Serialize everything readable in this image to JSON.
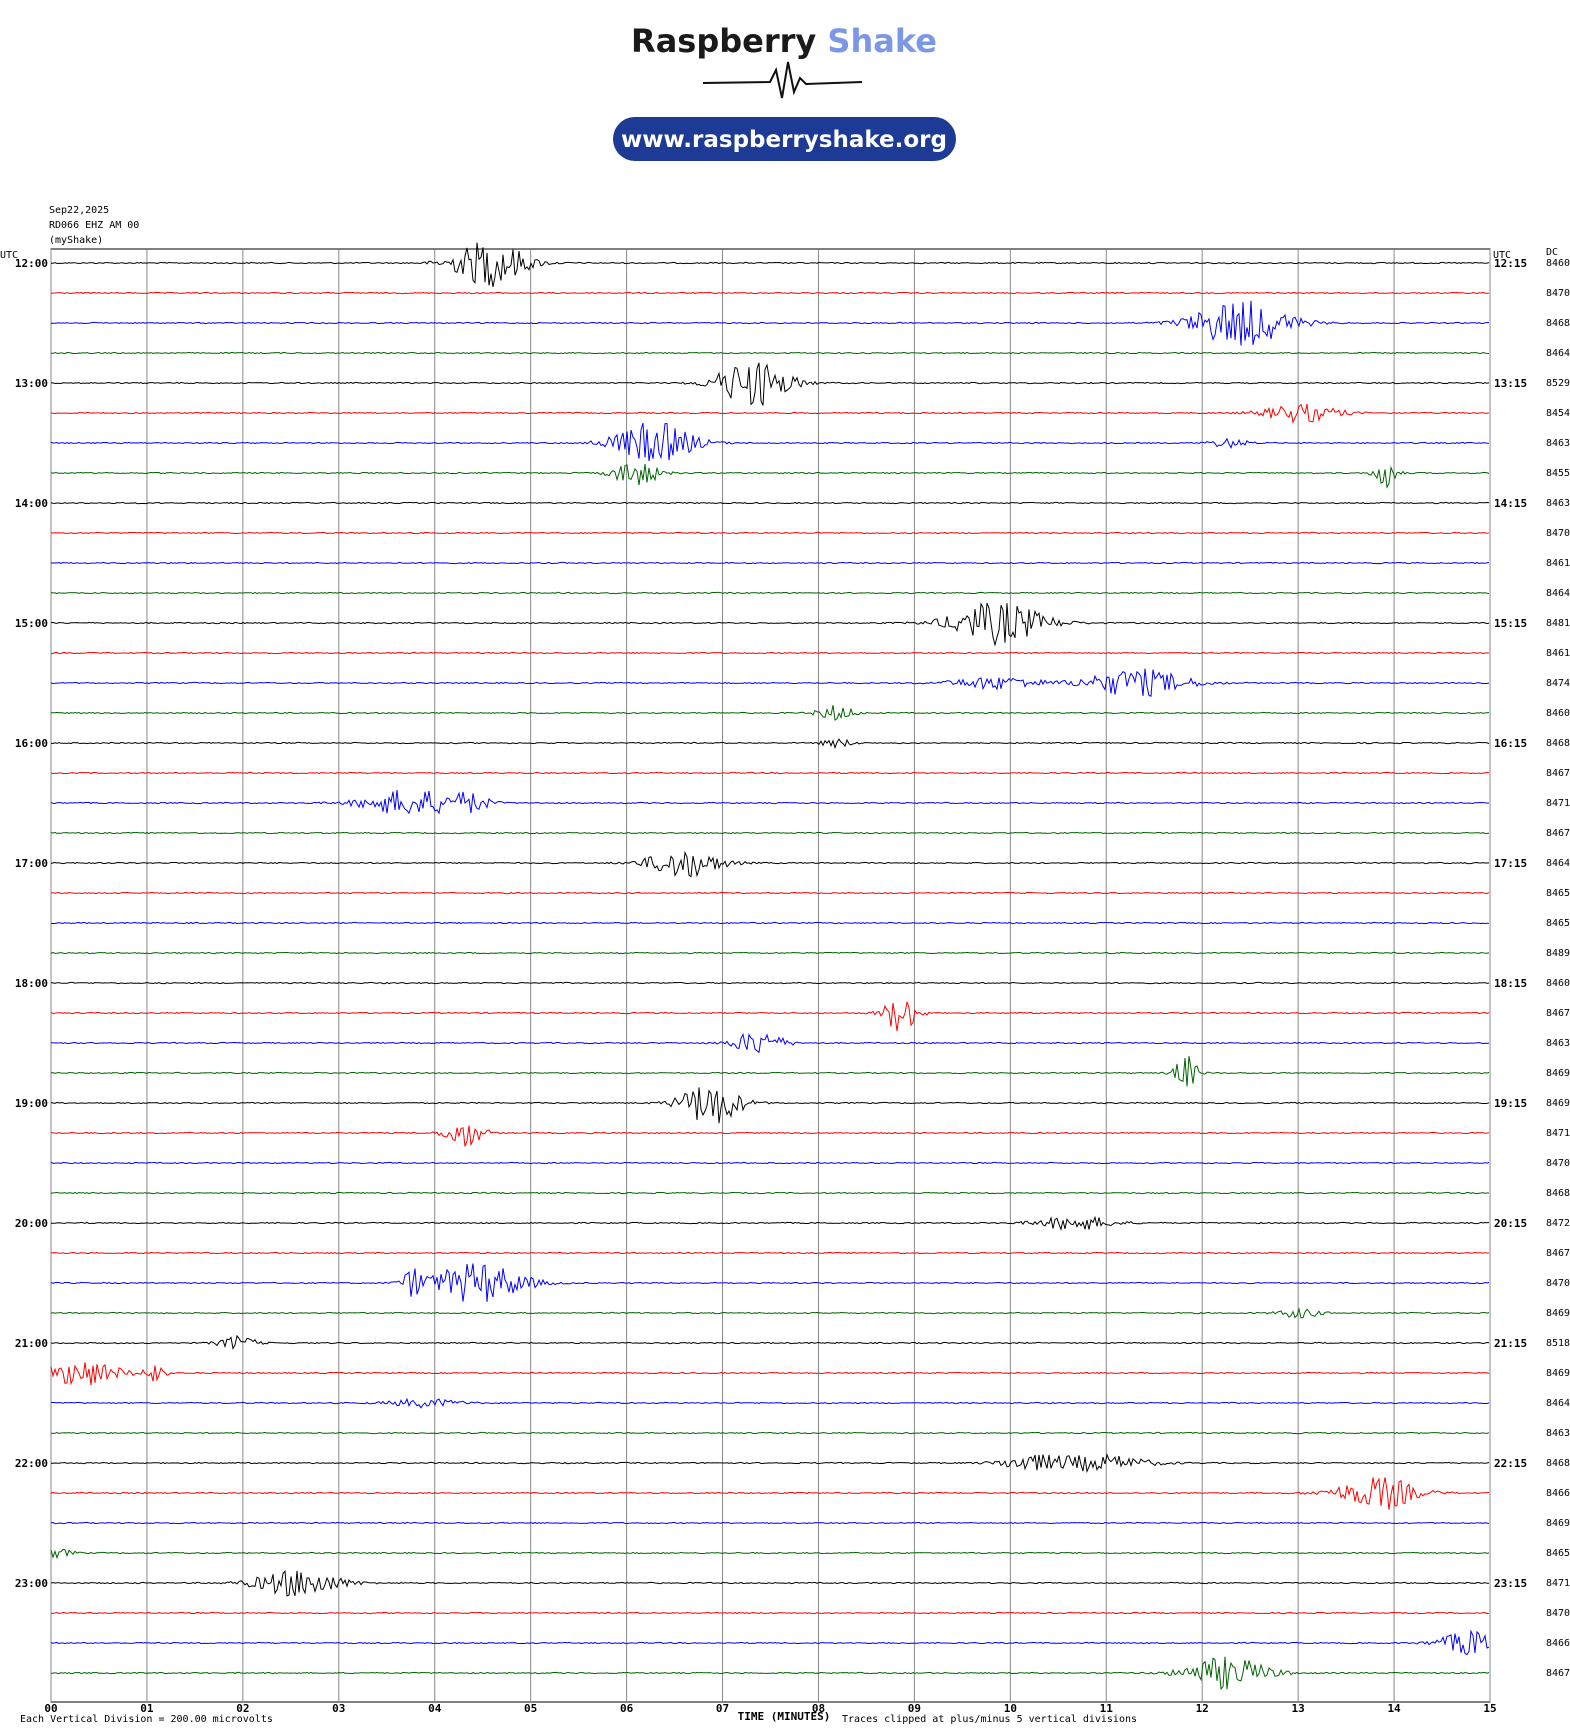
{
  "header": {
    "brand_first": "Raspberry",
    "brand_second": "Shake",
    "url": "www.raspberryshake.org"
  },
  "meta": {
    "date": "Sep22,2025",
    "station": "RD066 EHZ AM 00",
    "network": "(myShake)"
  },
  "left_title": "UTC",
  "right_title": "UTC",
  "dc_title": "DC",
  "left_labels": [
    "12:00",
    "13:00",
    "14:00",
    "15:00",
    "16:00",
    "17:00",
    "18:00",
    "19:00",
    "20:00",
    "21:00",
    "22:00",
    "23:00"
  ],
  "right_labels": [
    "12:15",
    "13:15",
    "14:15",
    "15:15",
    "16:15",
    "17:15",
    "18:15",
    "19:15",
    "20:15",
    "21:15",
    "22:15",
    "23:15"
  ],
  "dc_values": [
    8460,
    8470,
    8468,
    8464,
    8529,
    8454,
    8463,
    8455,
    8463,
    8470,
    8461,
    8464,
    8481,
    8461,
    8474,
    8460,
    8468,
    8467,
    8471,
    8467,
    8464,
    8465,
    8465,
    8489,
    8460,
    8467,
    8463,
    8469,
    8469,
    8471,
    8470,
    8468,
    8472,
    8467,
    8470,
    8469,
    8518,
    8469,
    8464,
    8463,
    8468,
    8466,
    8469,
    8465,
    8471,
    8470,
    8466,
    8467
  ],
  "trace_colors": [
    "#000000",
    "#ff0000",
    "#0000ff",
    "#006400"
  ],
  "x_ticks": [
    "00",
    "01",
    "02",
    "03",
    "04",
    "05",
    "06",
    "07",
    "08",
    "09",
    "10",
    "11",
    "12",
    "13",
    "14",
    "15"
  ],
  "footer": {
    "scale": "Each Vertical Division =  200.00 microvolts",
    "axis_title": "TIME (MINUTES)",
    "clip_note": "Traces clipped at plus/minus 5 vertical divisions"
  }
}
